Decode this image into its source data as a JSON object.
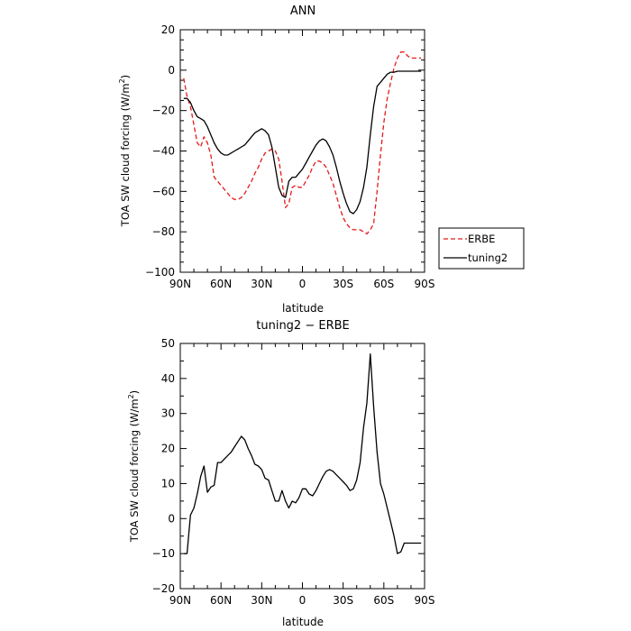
{
  "chart_data": [
    {
      "type": "line",
      "title": "ANN",
      "xlabel": "latitude",
      "ylabel": "TOA SW cloud forcing (W/m²)",
      "ylabel_main": "TOA SW cloud forcing (W/m",
      "ylabel_sup": "2",
      "ylabel_tail": ")",
      "xlim": [
        -90,
        90
      ],
      "ylim": [
        -100,
        20
      ],
      "x_ticks": [
        {
          "value": -90,
          "label": "90N"
        },
        {
          "value": -60,
          "label": "60N"
        },
        {
          "value": -30,
          "label": "30N"
        },
        {
          "value": 0,
          "label": "0"
        },
        {
          "value": 30,
          "label": "30S"
        },
        {
          "value": 60,
          "label": "60S"
        },
        {
          "value": 90,
          "label": "90S"
        }
      ],
      "y_ticks": [
        20,
        0,
        -20,
        -40,
        -60,
        -80,
        -100
      ],
      "y_tick_labels": [
        "20",
        "0",
        "−20",
        "−40",
        "−60",
        "−80",
        "−100"
      ],
      "grid": false,
      "legend": {
        "placement": "right",
        "entries": [
          "ERBE",
          "tuning2"
        ]
      },
      "series": [
        {
          "name": "ERBE",
          "color": "#e41a1c",
          "dash": "dashed",
          "x": [
            -87.5,
            -85,
            -82.5,
            -80,
            -77.5,
            -75,
            -72.5,
            -70,
            -67.5,
            -65,
            -62.5,
            -60,
            -57.5,
            -55,
            -52.5,
            -50,
            -47.5,
            -45,
            -42.5,
            -40,
            -37.5,
            -35,
            -32.5,
            -30,
            -27.5,
            -25,
            -22.5,
            -20,
            -17.5,
            -15,
            -12.5,
            -10,
            -7.5,
            -5,
            -2.5,
            0,
            2.5,
            5,
            7.5,
            10,
            12.5,
            15,
            17.5,
            20,
            22.5,
            25,
            27.5,
            30,
            32.5,
            35,
            37.5,
            40,
            42.5,
            45,
            47.5,
            50,
            52.5,
            55,
            57.5,
            60,
            62.5,
            65,
            67.5,
            70,
            72.5,
            75,
            77.5,
            80,
            82.5,
            85,
            87.5
          ],
          "y": [
            -4,
            -13,
            -18,
            -27,
            -36,
            -38,
            -33,
            -36,
            -42,
            -53,
            -55,
            -57,
            -59,
            -61,
            -63,
            -64,
            -64,
            -63,
            -61,
            -58,
            -55,
            -51,
            -48,
            -44,
            -41,
            -40,
            -39,
            -40,
            -44,
            -55,
            -68,
            -66,
            -58,
            -57,
            -58,
            -58,
            -55,
            -52,
            -48,
            -45,
            -45,
            -46,
            -48,
            -52,
            -56,
            -62,
            -68,
            -73,
            -76,
            -78,
            -79,
            -79,
            -79,
            -80,
            -81,
            -79,
            -76,
            -60,
            -42,
            -26,
            -14,
            -6,
            1,
            6,
            9,
            9,
            7,
            6,
            6,
            6,
            6
          ]
        },
        {
          "name": "tuning2",
          "color": "#000000",
          "dash": "solid",
          "x": [
            -87.5,
            -85,
            -82.5,
            -80,
            -77.5,
            -75,
            -72.5,
            -70,
            -67.5,
            -65,
            -62.5,
            -60,
            -57.5,
            -55,
            -52.5,
            -50,
            -47.5,
            -45,
            -42.5,
            -40,
            -37.5,
            -35,
            -32.5,
            -30,
            -27.5,
            -25,
            -22.5,
            -20,
            -17.5,
            -15,
            -12.5,
            -10,
            -7.5,
            -5,
            -2.5,
            0,
            2.5,
            5,
            7.5,
            10,
            12.5,
            15,
            17.5,
            20,
            22.5,
            25,
            27.5,
            30,
            32.5,
            35,
            37.5,
            40,
            42.5,
            45,
            47.5,
            50,
            52.5,
            55,
            57.5,
            60,
            62.5,
            65,
            67.5,
            70,
            72.5,
            75,
            77.5,
            80,
            82.5,
            85,
            87.5
          ],
          "y": [
            -14,
            -14,
            -16,
            -20,
            -23,
            -24,
            -25,
            -28,
            -32,
            -36,
            -39,
            -41,
            -42,
            -42,
            -41,
            -40,
            -39,
            -38,
            -37,
            -35,
            -33,
            -31,
            -30,
            -29,
            -30,
            -32,
            -38,
            -48,
            -58,
            -62,
            -63,
            -55,
            -53,
            -53,
            -51,
            -49,
            -46,
            -43,
            -40,
            -37,
            -35,
            -34,
            -35,
            -38,
            -42,
            -48,
            -55,
            -61,
            -66,
            -70,
            -71,
            -69,
            -65,
            -58,
            -48,
            -32,
            -18,
            -8,
            -6,
            -4,
            -2,
            -1,
            -1,
            -0.5,
            -0.5,
            -0.5,
            -0.5,
            -0.5,
            -0.5,
            -0.5,
            -0.5
          ]
        }
      ]
    },
    {
      "type": "line",
      "title": "tuning2 − ERBE",
      "xlabel": "latitude",
      "ylabel": "TOA SW cloud forcing (W/m²)",
      "ylabel_main": "TOA SW cloud forcing (W/m",
      "ylabel_sup": "2",
      "ylabel_tail": ")",
      "xlim": [
        -90,
        90
      ],
      "ylim": [
        -20,
        50
      ],
      "x_ticks": [
        {
          "value": -90,
          "label": "90N"
        },
        {
          "value": -60,
          "label": "60N"
        },
        {
          "value": -30,
          "label": "30N"
        },
        {
          "value": 0,
          "label": "0"
        },
        {
          "value": 30,
          "label": "30S"
        },
        {
          "value": 60,
          "label": "60S"
        },
        {
          "value": 90,
          "label": "90S"
        }
      ],
      "y_ticks": [
        50,
        40,
        30,
        20,
        10,
        0,
        -10,
        -20
      ],
      "y_tick_labels": [
        "50",
        "40",
        "30",
        "20",
        "10",
        "0",
        "−10",
        "−20"
      ],
      "grid": false,
      "series": [
        {
          "color": "#000000",
          "dash": "solid",
          "x": [
            -87.5,
            -85,
            -82.5,
            -80,
            -77.5,
            -75,
            -72.5,
            -70,
            -67.5,
            -65,
            -62.5,
            -60,
            -57.5,
            -55,
            -52.5,
            -50,
            -47.5,
            -45,
            -42.5,
            -40,
            -37.5,
            -35,
            -32.5,
            -30,
            -27.5,
            -25,
            -22.5,
            -20,
            -17.5,
            -15,
            -12.5,
            -10,
            -7.5,
            -5,
            -2.5,
            0,
            2.5,
            5,
            7.5,
            10,
            12.5,
            15,
            17.5,
            20,
            22.5,
            25,
            27.5,
            30,
            32.5,
            35,
            37.5,
            40,
            42.5,
            45,
            47.5,
            50,
            52.5,
            55,
            57.5,
            60,
            62.5,
            65,
            67.5,
            70,
            72.5,
            75,
            77.5,
            80,
            82.5,
            85,
            87.5
          ],
          "y": [
            -10,
            -10,
            1,
            3,
            7,
            12,
            15,
            7.5,
            9,
            9.5,
            16,
            16,
            17,
            18,
            19,
            20.5,
            22,
            23.5,
            22.5,
            20,
            18,
            15.5,
            15,
            14,
            11.5,
            11,
            8,
            5,
            5,
            8,
            5,
            3,
            5,
            4.5,
            6,
            8.5,
            8.5,
            7,
            6.5,
            8,
            10,
            12,
            13.5,
            14,
            13.5,
            12.5,
            11.5,
            10.5,
            9.5,
            8,
            8.5,
            11,
            16,
            26,
            33,
            47,
            32,
            19,
            10,
            7,
            3,
            -1,
            -5,
            -10,
            -9.5,
            -7,
            -7,
            -7,
            -7,
            -7,
            -7
          ]
        }
      ]
    }
  ]
}
